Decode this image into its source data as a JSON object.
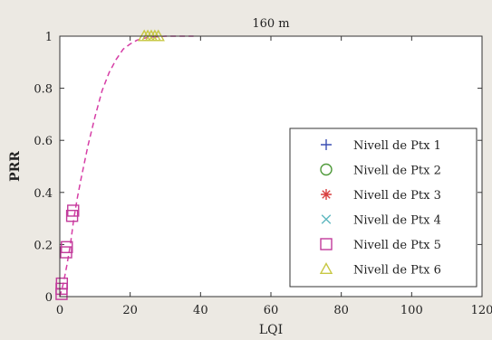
{
  "colors": {
    "page_bg": "#ece9e3",
    "plot_bg": "#ffffff",
    "axis": "#333333",
    "curve": "#d63ea6"
  },
  "chart_data": {
    "type": "scatter",
    "title": "160 m",
    "xlabel": "LQI",
    "ylabel": "PRR",
    "xlim": [
      0,
      120
    ],
    "ylim": [
      0,
      1
    ],
    "x_ticks": [
      "0",
      "20",
      "40",
      "60",
      "80",
      "100",
      "120"
    ],
    "y_ticks": [
      "0",
      "0.2",
      "0.4",
      "0.6",
      "0.8",
      "1"
    ],
    "grid": false,
    "legend_position": "right",
    "fit_curve": {
      "style": "dashed",
      "color": "#d63ea6",
      "points": [
        [
          0,
          0.0
        ],
        [
          1,
          0.05
        ],
        [
          2,
          0.12
        ],
        [
          3,
          0.2
        ],
        [
          4,
          0.3
        ],
        [
          5,
          0.38
        ],
        [
          6,
          0.45
        ],
        [
          8,
          0.58
        ],
        [
          10,
          0.69
        ],
        [
          12,
          0.79
        ],
        [
          14,
          0.86
        ],
        [
          16,
          0.91
        ],
        [
          18,
          0.95
        ],
        [
          20,
          0.97
        ],
        [
          22,
          0.985
        ],
        [
          25,
          0.995
        ],
        [
          30,
          1.0
        ],
        [
          35,
          1.0
        ],
        [
          38,
          1.0
        ]
      ]
    },
    "series": [
      {
        "name": "Nivell de Ptx 1",
        "marker": "plus",
        "color": "#3b4fb3",
        "points": []
      },
      {
        "name": "Nivell de Ptx 2",
        "marker": "circle",
        "color": "#4f9a3a",
        "points": []
      },
      {
        "name": "Nivell de Ptx 3",
        "marker": "asterisk",
        "color": "#d94040",
        "points": []
      },
      {
        "name": "Nivell de Ptx 4",
        "marker": "x",
        "color": "#5fb8c0",
        "points": []
      },
      {
        "name": "Nivell de Ptx 5",
        "marker": "square",
        "color": "#c23a9b",
        "points": [
          [
            0.5,
            0.01
          ],
          [
            0.5,
            0.03
          ],
          [
            0.6,
            0.05
          ],
          [
            1.8,
            0.17
          ],
          [
            2.0,
            0.19
          ],
          [
            3.5,
            0.31
          ],
          [
            3.8,
            0.33
          ]
        ]
      },
      {
        "name": "Nivell de Ptx 6",
        "marker": "triangle",
        "color": "#c8c844",
        "points": [
          [
            24,
            1.0
          ],
          [
            25,
            1.0
          ],
          [
            26,
            1.0
          ],
          [
            27,
            1.0
          ],
          [
            28,
            1.0
          ]
        ]
      }
    ]
  }
}
